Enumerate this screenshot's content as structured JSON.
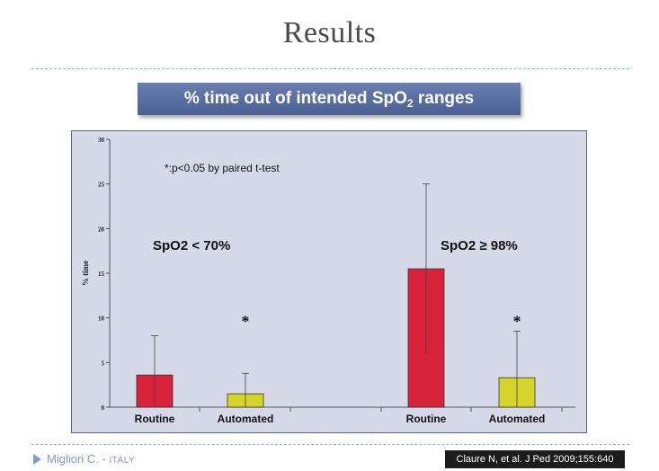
{
  "slide": {
    "title": "Results",
    "banner_text": "% time out of intended SpO",
    "banner_sub": "2",
    "banner_suffix": " ranges",
    "footer_author": "Migliori C. - ",
    "footer_country": "ITALY",
    "citation": "Claure  N, et al. J Ped 2009;155:640",
    "colors": {
      "banner": "#5a6ea3",
      "chart_bg": "#d6d9e7",
      "accent": "#7f9ccd"
    }
  },
  "chart_data": {
    "type": "bar",
    "title": "",
    "ylabel": "% time",
    "xlabel": "",
    "ylim": [
      0,
      30
    ],
    "yticks": [
      0,
      5,
      10,
      15,
      20,
      25,
      30
    ],
    "grid": false,
    "note": "*:p<0.05 by paired t-test",
    "groups": [
      {
        "label": "SpO2 < 70%",
        "bars": [
          {
            "category": "Routine",
            "value": 3.6,
            "error_high": 8.0,
            "color": "#d9233a",
            "significant": false
          },
          {
            "category": "Automated",
            "value": 1.5,
            "error_high": 3.8,
            "color": "#d4d42a",
            "significant": true
          }
        ]
      },
      {
        "label": "SpO2 ≥ 98%",
        "bars": [
          {
            "category": "Routine",
            "value": 15.5,
            "error_high": 25.0,
            "error_low": 6.0,
            "color": "#d9233a",
            "significant": false
          },
          {
            "category": "Automated",
            "value": 3.3,
            "error_high": 8.5,
            "color": "#d4d42a",
            "significant": true
          }
        ]
      }
    ],
    "significance_marker": "*"
  }
}
